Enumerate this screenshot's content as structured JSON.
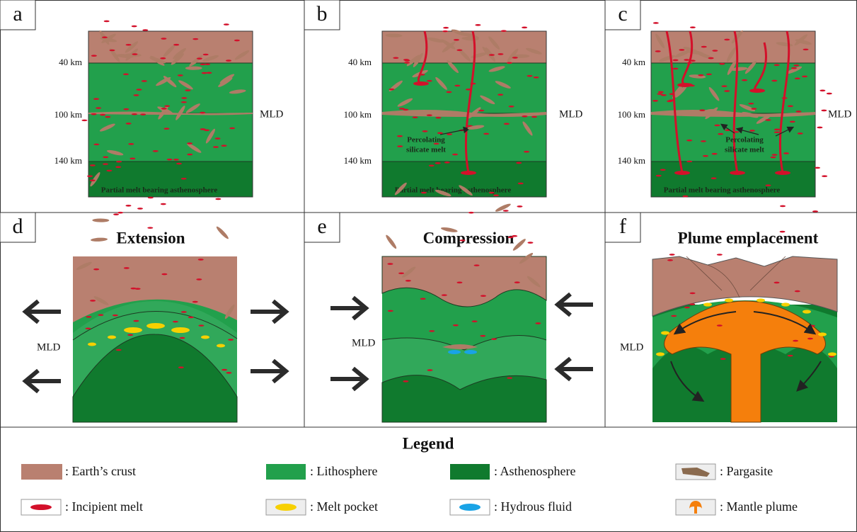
{
  "panels": [
    {
      "letter": "a",
      "depths": [
        "40 km",
        "100 km",
        "140 km"
      ],
      "mld": "MLD",
      "asthenosphere_label": "Partial melt bearing asthenosphere"
    },
    {
      "letter": "b",
      "depths": [
        "40 km",
        "100 km",
        "140 km"
      ],
      "mld": "MLD",
      "melt_label": [
        "Percolating",
        "silicate melt"
      ],
      "asthenosphere_label": "Partial melt bearing asthenosphere"
    },
    {
      "letter": "c",
      "depths": [
        "40 km",
        "100 km",
        "140 km"
      ],
      "mld": "MLD",
      "melt_label": [
        "Percolating",
        "silicate melt"
      ],
      "asthenosphere_label": "Partial melt bearing asthenosphere"
    },
    {
      "letter": "d",
      "title": "Extension",
      "mld": "MLD"
    },
    {
      "letter": "e",
      "title": "Compression",
      "mld": "MLD"
    },
    {
      "letter": "f",
      "title": "Plume emplacement",
      "mld": "MLD"
    }
  ],
  "legend": {
    "title": "Legend",
    "items": [
      {
        "label": ": Earth’s crust"
      },
      {
        "label": ": Lithosphere"
      },
      {
        "label": ": Asthenosphere"
      },
      {
        "label": ": Pargasite"
      },
      {
        "label": ": Incipient melt"
      },
      {
        "label": ": Melt pocket"
      },
      {
        "label": ": Hydrous fluid"
      },
      {
        "label": ": Mantle plume"
      }
    ]
  }
}
